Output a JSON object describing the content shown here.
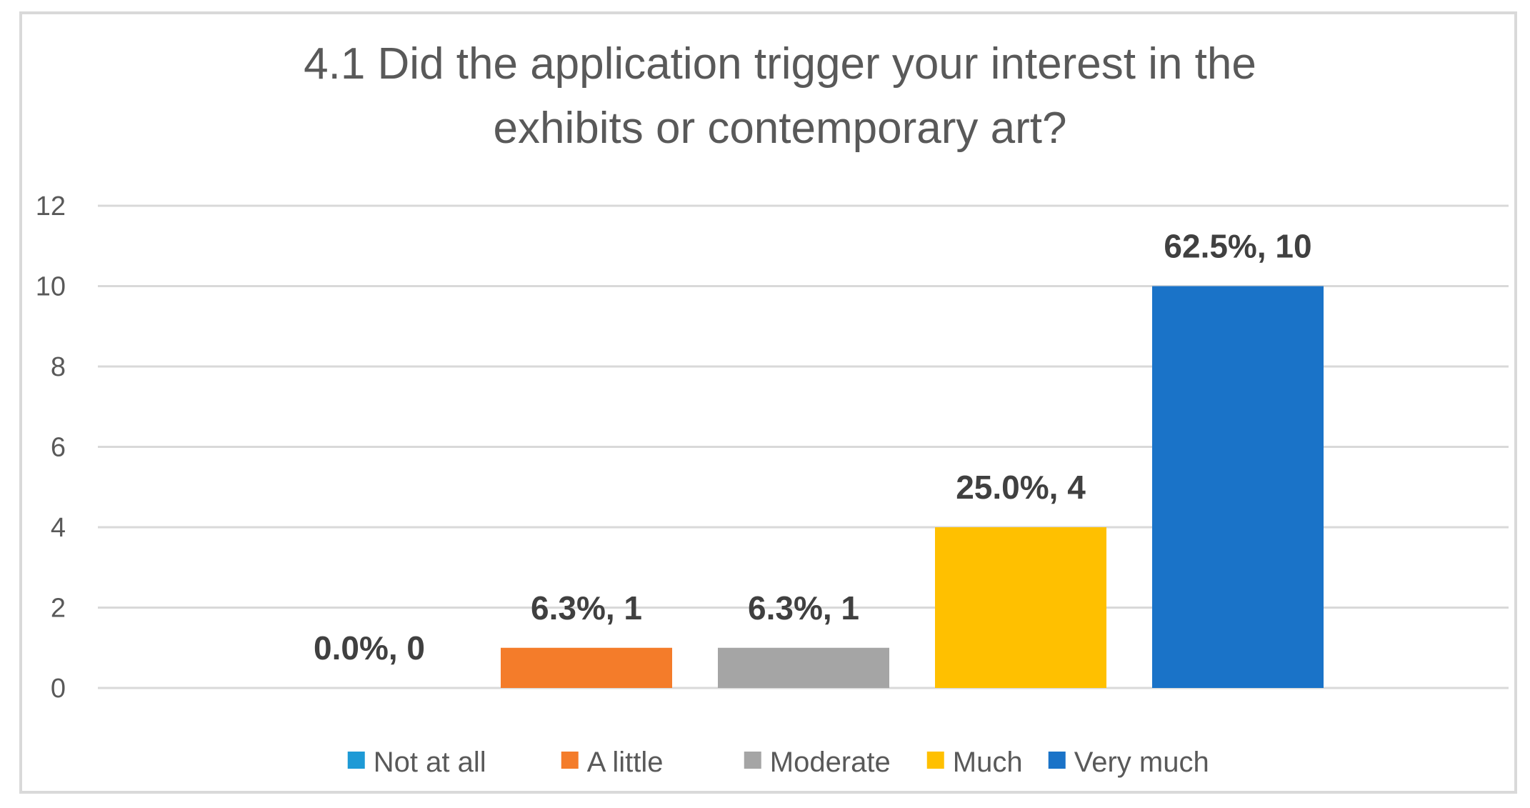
{
  "chart_data": {
    "type": "bar",
    "title_lines": [
      "4.1 Did the application trigger your interest in the",
      "exhibits or contemporary art?"
    ],
    "categories": [
      "Not at all",
      "A little",
      "Moderate",
      "Much",
      "Very much"
    ],
    "values": [
      0,
      1,
      1,
      4,
      10
    ],
    "data_labels": [
      "0.0%, 0",
      "6.3%, 1",
      "6.3%, 1",
      "25.0%, 4",
      "62.5%, 10"
    ],
    "colors": [
      "#1e9ad6",
      "#f47c2a",
      "#a5a5a5",
      "#ffc000",
      "#1a73c8"
    ],
    "ylim": [
      0,
      12
    ],
    "yticks": [
      0,
      2,
      4,
      6,
      8,
      10,
      12
    ],
    "grid": true,
    "legend_position": "bottom",
    "xlabel": "",
    "ylabel": ""
  }
}
